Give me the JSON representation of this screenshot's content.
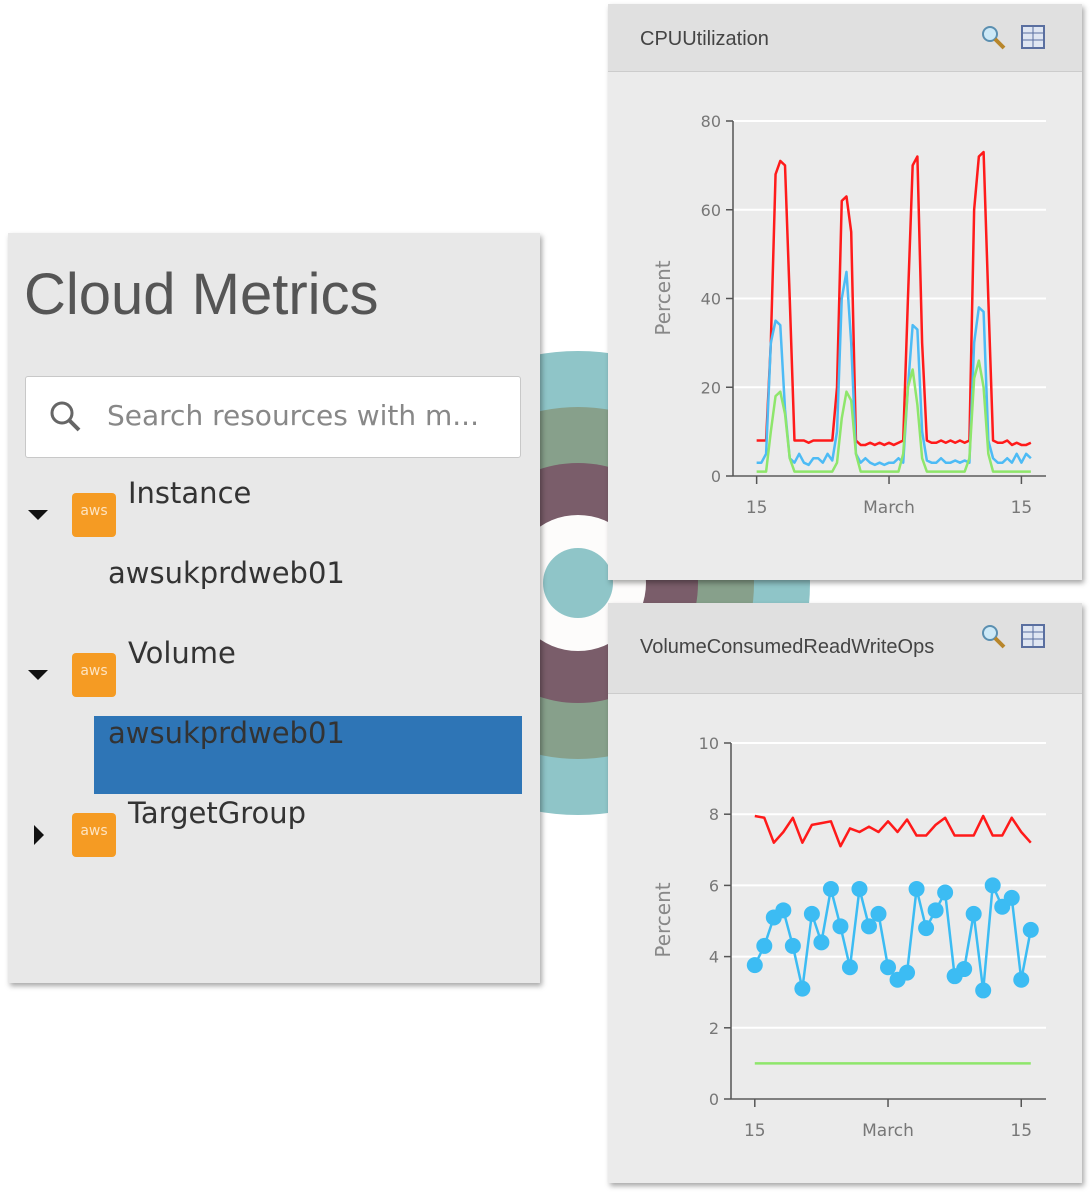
{
  "panel": {
    "title": "Cloud Metrics",
    "search_placeholder": "Search resources with m...",
    "tree": [
      {
        "label": "Instance",
        "icon": "aws",
        "expanded": true,
        "children": [
          {
            "label": "awsukprdweb01",
            "selected": false
          }
        ]
      },
      {
        "label": "Volume",
        "icon": "aws",
        "expanded": true,
        "children": [
          {
            "label": "awsukprdweb01",
            "selected": true
          }
        ]
      },
      {
        "label": "TargetGroup",
        "icon": "aws",
        "expanded": false,
        "children": []
      }
    ]
  },
  "chart_data": [
    {
      "type": "line",
      "title": "CPUUtilization",
      "y_label": "Percent",
      "grid": true,
      "x": [
        0,
        0.5,
        1,
        1.5,
        2,
        2.5,
        3,
        3.5,
        4,
        4.5,
        5,
        5.5,
        6,
        6.5,
        7,
        7.5,
        8,
        8.5,
        9,
        9.5,
        10,
        10.5,
        11,
        11.5,
        12,
        12.5,
        13,
        13.5,
        14,
        14.5,
        15,
        15.5,
        16,
        16.5,
        17,
        17.5,
        18,
        18.5,
        19,
        19.5,
        20,
        20.5,
        21,
        21.5,
        22,
        22.5,
        23,
        23.5,
        24,
        24.5,
        25,
        25.5,
        26,
        26.5,
        27,
        27.5,
        28,
        28.5,
        29
      ],
      "xlim": [
        -2.5,
        30.6
      ],
      "xticks": [
        {
          "value": 0,
          "label": "15"
        },
        {
          "value": 14,
          "label": "March"
        },
        {
          "value": 28,
          "label": "15"
        }
      ],
      "ylim": [
        0,
        80
      ],
      "yticks": [
        0,
        20,
        40,
        60,
        80
      ],
      "series": [
        {
          "color": "#ff1a1a",
          "values": [
            8,
            8,
            8,
            30,
            68,
            71,
            70,
            40,
            8,
            8,
            8,
            7.5,
            8,
            8,
            8,
            8,
            8,
            20,
            62,
            63,
            55,
            8,
            7,
            7,
            7.5,
            7,
            7.5,
            7,
            7.5,
            7,
            7.5,
            8,
            40,
            70,
            72,
            30,
            8,
            7.5,
            7.5,
            8,
            7.5,
            8,
            7.5,
            8,
            7.5,
            8,
            60,
            72,
            73,
            40,
            8,
            7.5,
            7.5,
            8,
            7,
            7.5,
            7,
            7,
            7.5
          ]
        },
        {
          "color": "#4dbbf5",
          "values": [
            3,
            3,
            5,
            30,
            35,
            34,
            15,
            4,
            3,
            5,
            3,
            2.5,
            4,
            4,
            3,
            5,
            3.5,
            10,
            40,
            46,
            30,
            5,
            3,
            4,
            3,
            2.5,
            3,
            2.5,
            3,
            3,
            4,
            3,
            20,
            34,
            33,
            10,
            3.5,
            3,
            3,
            4,
            3,
            3,
            3.5,
            3,
            3.5,
            3,
            30,
            38,
            37,
            8,
            4,
            3,
            3,
            4,
            3,
            5,
            3,
            5,
            4
          ]
        },
        {
          "color": "#8ee66b",
          "values": [
            1,
            1,
            1,
            10,
            18,
            19,
            14,
            4,
            1,
            1,
            1,
            1,
            1,
            1,
            1,
            1,
            1,
            3,
            13,
            19,
            17,
            5,
            1,
            1,
            1,
            1,
            1,
            1,
            1,
            1,
            1,
            5,
            20,
            24,
            16,
            4,
            1,
            1,
            1,
            1,
            1,
            1,
            1,
            1,
            1,
            4,
            22,
            26,
            20,
            5,
            1,
            1,
            1,
            1,
            1,
            1,
            1,
            1,
            1
          ]
        }
      ]
    },
    {
      "type": "line",
      "title": "VolumeConsumedReadWriteOps",
      "y_label": "Percent",
      "grid": true,
      "x": [
        0,
        1,
        2,
        3,
        4,
        5,
        6,
        7,
        8,
        9,
        10,
        11,
        12,
        13,
        14,
        15,
        16,
        17,
        18,
        19,
        20,
        21,
        22,
        23,
        24,
        25,
        26,
        27,
        28,
        29
      ],
      "xlim": [
        -2.5,
        30.6
      ],
      "xticks": [
        {
          "value": 0,
          "label": "15"
        },
        {
          "value": 14,
          "label": "March"
        },
        {
          "value": 28,
          "label": "15"
        }
      ],
      "ylim": [
        0,
        10
      ],
      "yticks": [
        0,
        2,
        4,
        6,
        8,
        10
      ],
      "series": [
        {
          "color": "#ff1a1a",
          "markers": false,
          "values": [
            7.95,
            7.9,
            7.2,
            7.5,
            7.9,
            7.2,
            7.7,
            7.75,
            7.8,
            7.1,
            7.6,
            7.5,
            7.65,
            7.5,
            7.8,
            7.5,
            7.85,
            7.4,
            7.4,
            7.7,
            7.9,
            7.4,
            7.4,
            7.4,
            7.95,
            7.4,
            7.4,
            7.9,
            7.5,
            7.2
          ]
        },
        {
          "color": "#3cbcf3",
          "markers": true,
          "values": [
            3.76,
            4.3,
            5.1,
            5.3,
            4.3,
            3.1,
            5.2,
            4.4,
            5.9,
            4.85,
            3.7,
            5.9,
            4.85,
            5.2,
            3.7,
            3.35,
            3.55,
            5.9,
            4.8,
            5.3,
            5.8,
            3.45,
            3.65,
            5.2,
            3.05,
            6.0,
            5.4,
            5.65,
            3.35,
            4.75
          ]
        },
        {
          "color": "#8ee66b",
          "markers": false,
          "values": [
            1,
            1,
            1,
            1,
            1,
            1,
            1,
            1,
            1,
            1,
            1,
            1,
            1,
            1,
            1,
            1,
            1,
            1,
            1,
            1,
            1,
            1,
            1,
            1,
            1,
            1,
            1,
            1,
            1,
            1
          ]
        }
      ]
    }
  ]
}
